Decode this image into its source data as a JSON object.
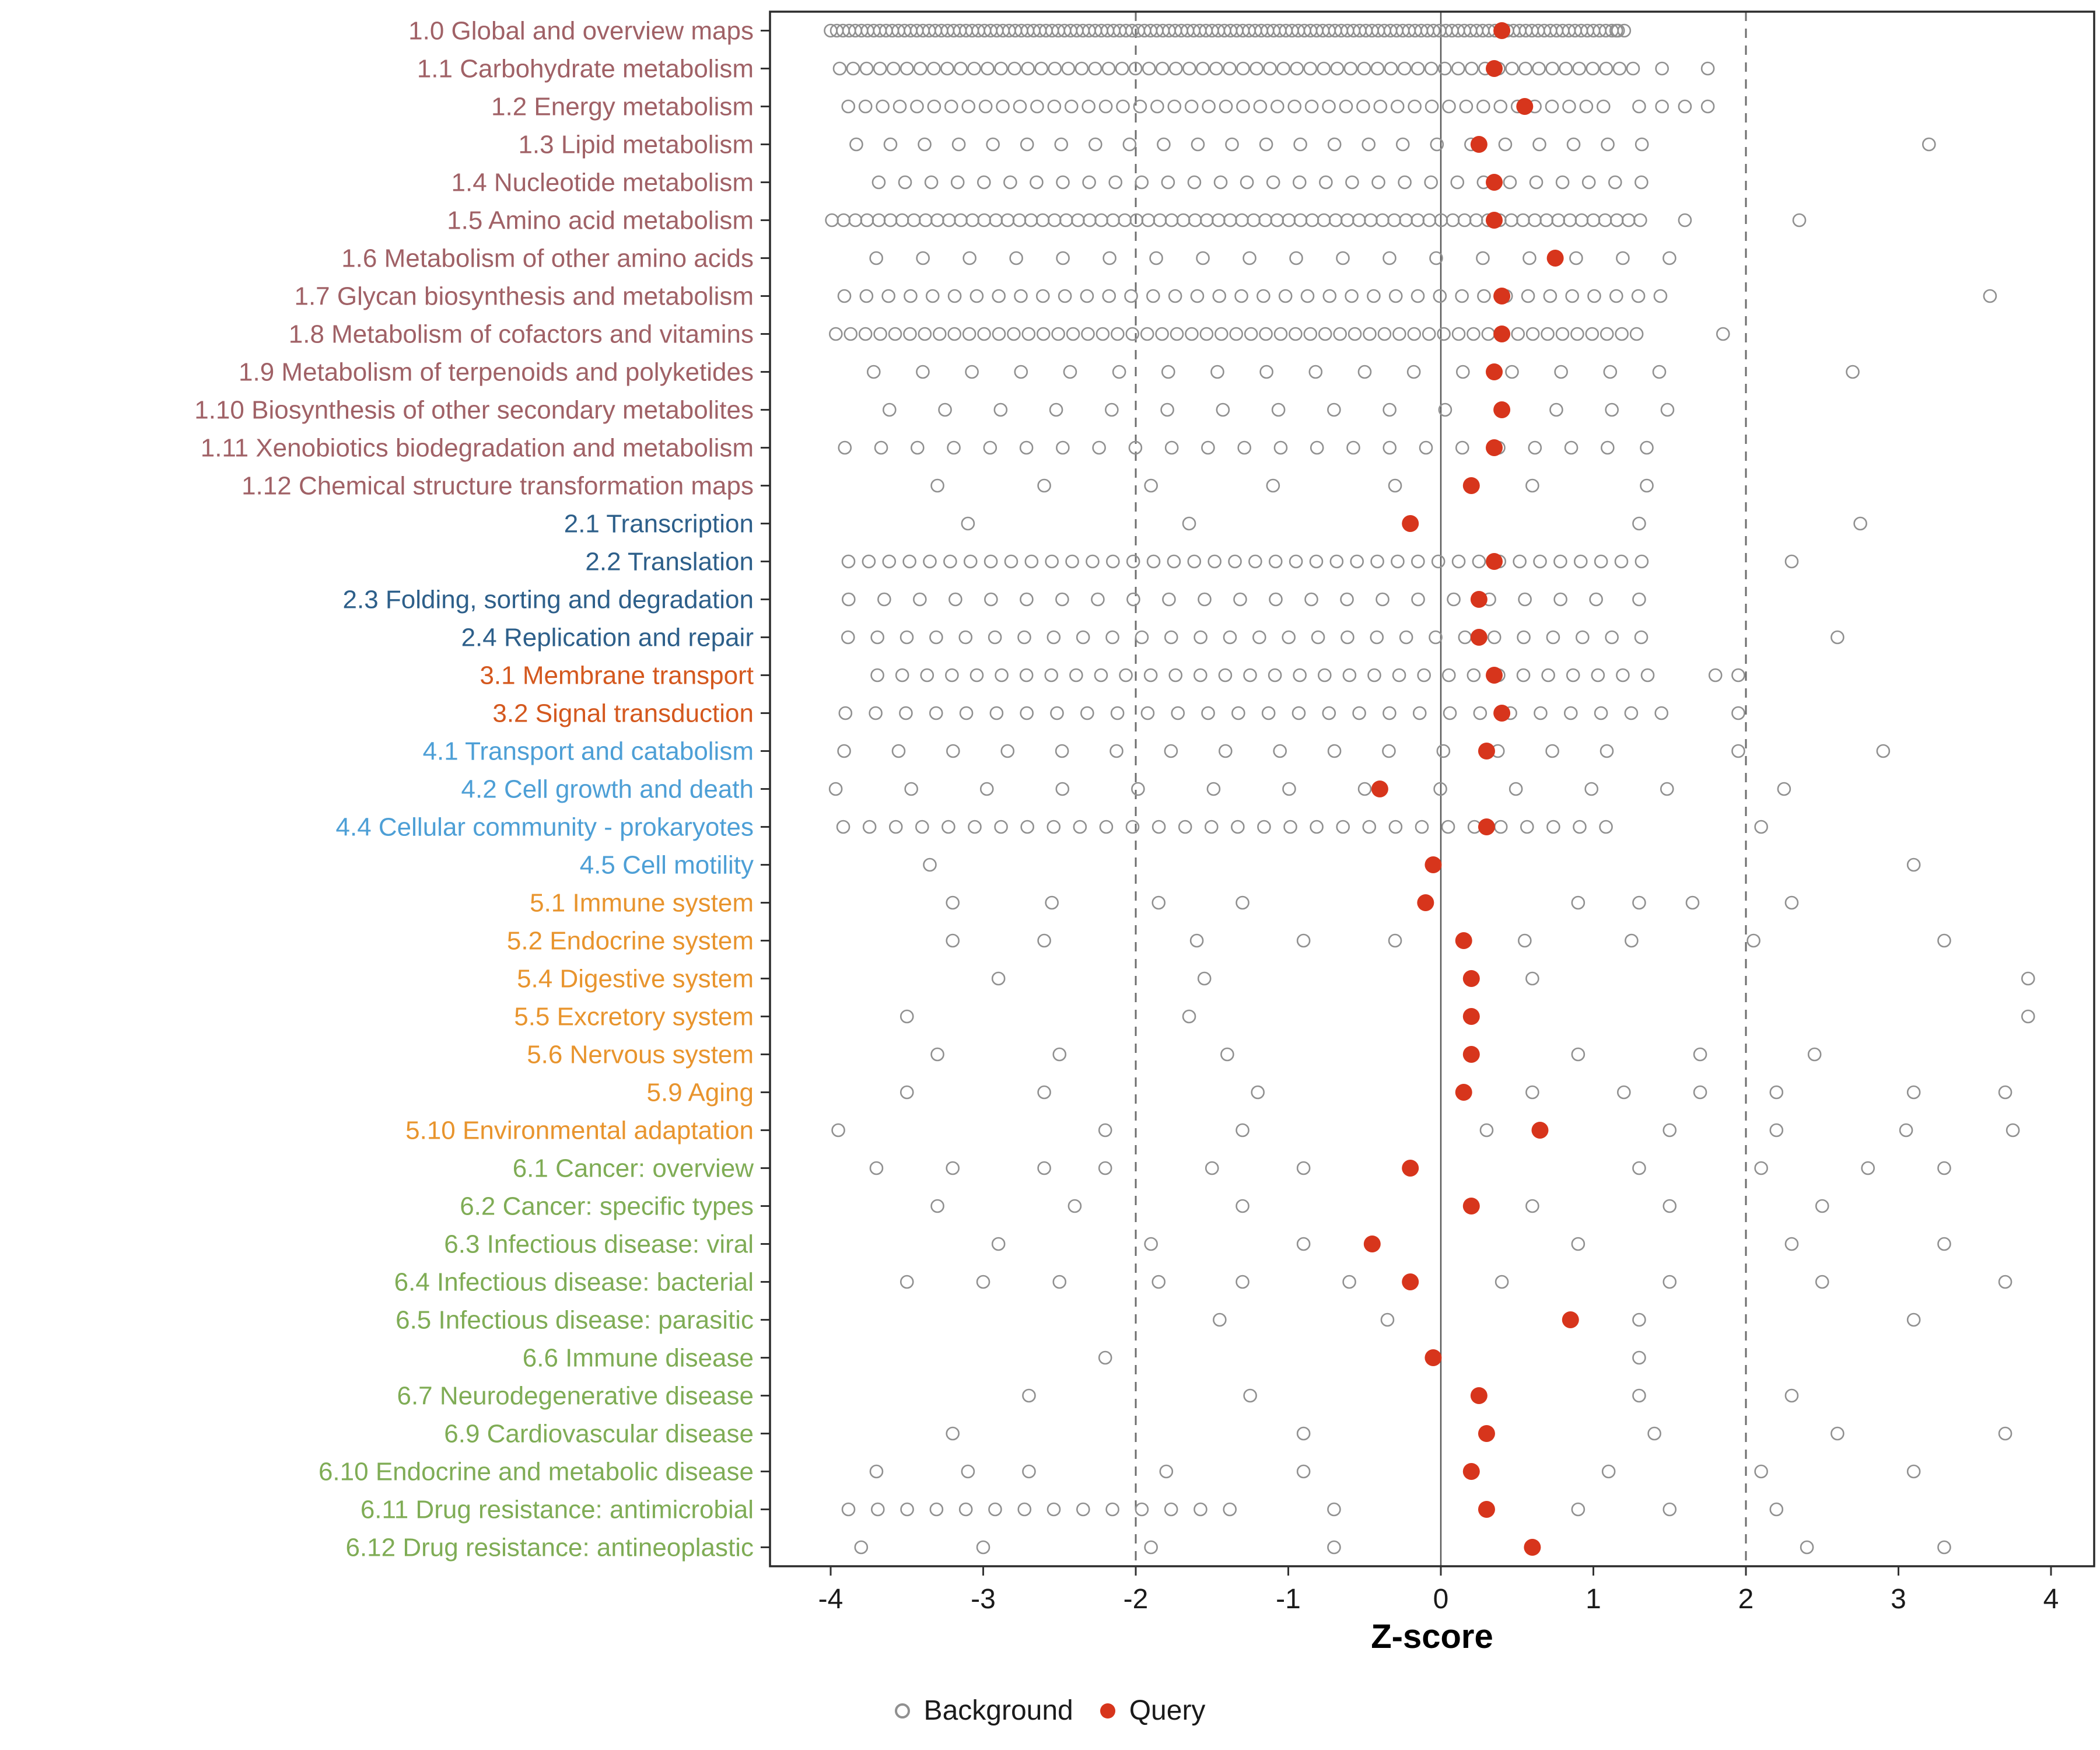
{
  "chart_data": {
    "type": "scatter",
    "title": "",
    "xlabel": "Z-score",
    "ylabel": "",
    "x_ticks": [
      -4,
      -3,
      -2,
      -1,
      0,
      1,
      2,
      3,
      4
    ],
    "x_range": [
      -4.4,
      4.3
    ],
    "ref_lines": {
      "solid": [
        0
      ],
      "dashed": [
        -2,
        2
      ]
    },
    "legend": {
      "background": "Background",
      "query": "Query"
    },
    "colors": {
      "query": "#D7351C",
      "background_stroke": "#909090",
      "axis_text": "#1a1a1a",
      "panel_border": "#2b2b2b",
      "ref_line": "#6e6e6e",
      "groups": {
        "g1": "#A06166",
        "g2": "#2D5F8A",
        "g3": "#D4581E",
        "g4": "#4D9FD6",
        "g5": "#E8942D",
        "g6": "#7FAC55"
      }
    },
    "categories": [
      {
        "label": "1.0 Global and overview maps",
        "group": "g1",
        "query": 0.4,
        "bg_bands": [
          [
            -4.0,
            1.2,
            130
          ]
        ],
        "bg_points": [
          1.15
        ]
      },
      {
        "label": "1.1 Carbohydrate metabolism",
        "group": "g1",
        "query": 0.35,
        "bg_bands": [
          [
            -3.95,
            1.25,
            60
          ]
        ],
        "bg_points": [
          1.45,
          1.75
        ]
      },
      {
        "label": "1.2 Energy metabolism",
        "group": "g1",
        "query": 0.55,
        "bg_bands": [
          [
            -3.9,
            1.05,
            45
          ]
        ],
        "bg_points": [
          1.3,
          1.45,
          1.6,
          1.75
        ]
      },
      {
        "label": "1.3 Lipid metabolism",
        "group": "g1",
        "query": 0.25,
        "bg_bands": [
          [
            -3.85,
            1.3,
            24
          ]
        ],
        "bg_points": [
          3.2
        ]
      },
      {
        "label": "1.4 Nucleotide metabolism",
        "group": "g1",
        "query": 0.35,
        "bg_bands": [
          [
            -3.7,
            1.3,
            30
          ]
        ],
        "bg_points": []
      },
      {
        "label": "1.5 Amino acid metabolism",
        "group": "g1",
        "query": 0.35,
        "bg_bands": [
          [
            -4.0,
            1.3,
            70
          ]
        ],
        "bg_points": [
          1.6,
          2.35
        ]
      },
      {
        "label": "1.6 Metabolism of other amino acids",
        "group": "g1",
        "query": 0.75,
        "bg_bands": [
          [
            -3.7,
            1.5,
            18
          ]
        ],
        "bg_points": []
      },
      {
        "label": "1.7 Glycan biosynthesis and metabolism",
        "group": "g1",
        "query": 0.4,
        "bg_bands": [
          [
            -3.9,
            1.45,
            38
          ]
        ],
        "bg_points": [
          3.6
        ]
      },
      {
        "label": "1.8 Metabolism of cofactors and vitamins",
        "group": "g1",
        "query": 0.4,
        "bg_bands": [
          [
            -3.95,
            1.3,
            55
          ]
        ],
        "bg_points": [
          1.85
        ]
      },
      {
        "label": "1.9 Metabolism of terpenoids and polyketides",
        "group": "g1",
        "query": 0.35,
        "bg_bands": [
          [
            -3.7,
            1.45,
            17
          ]
        ],
        "bg_points": [
          2.7
        ]
      },
      {
        "label": "1.10 Biosynthesis of other secondary metabolites",
        "group": "g1",
        "query": 0.4,
        "bg_bands": [
          [
            -3.6,
            1.5,
            15
          ]
        ],
        "bg_points": []
      },
      {
        "label": "1.11 Xenobiotics biodegradation and metabolism",
        "group": "g1",
        "query": 0.35,
        "bg_bands": [
          [
            -3.9,
            1.1,
            22
          ]
        ],
        "bg_points": [
          1.35
        ]
      },
      {
        "label": "1.12 Chemical structure transformation maps",
        "group": "g1",
        "query": 0.2,
        "bg_bands": [],
        "bg_points": [
          -3.3,
          -2.6,
          -1.9,
          -1.1,
          -0.3,
          0.6,
          1.35
        ]
      },
      {
        "label": "2.1 Transcription",
        "group": "g2",
        "query": -0.2,
        "bg_bands": [],
        "bg_points": [
          -3.1,
          -1.65,
          1.3,
          2.75
        ]
      },
      {
        "label": "2.2 Translation",
        "group": "g2",
        "query": 0.35,
        "bg_bands": [
          [
            -3.9,
            1.3,
            40
          ]
        ],
        "bg_points": [
          2.3
        ]
      },
      {
        "label": "2.3 Folding, sorting and degradation",
        "group": "g2",
        "query": 0.25,
        "bg_bands": [
          [
            -3.9,
            1.0,
            22
          ]
        ],
        "bg_points": [
          1.3
        ]
      },
      {
        "label": "2.4 Replication and repair",
        "group": "g2",
        "query": 0.25,
        "bg_bands": [
          [
            -3.9,
            1.3,
            28
          ]
        ],
        "bg_points": [
          2.6
        ]
      },
      {
        "label": "3.1 Membrane transport",
        "group": "g3",
        "query": 0.35,
        "bg_bands": [
          [
            -3.7,
            1.35,
            32
          ]
        ],
        "bg_points": [
          1.8,
          1.95
        ]
      },
      {
        "label": "3.2 Signal transduction",
        "group": "g3",
        "query": 0.4,
        "bg_bands": [
          [
            -3.9,
            1.45,
            28
          ]
        ],
        "bg_points": [
          1.95
        ]
      },
      {
        "label": "4.1 Transport and catabolism",
        "group": "g4",
        "query": 0.3,
        "bg_bands": [
          [
            -3.9,
            1.1,
            15
          ]
        ],
        "bg_points": [
          1.95,
          2.9
        ]
      },
      {
        "label": "4.2 Cell growth and death",
        "group": "g4",
        "query": -0.4,
        "bg_bands": [
          [
            -3.95,
            1.5,
            12
          ]
        ],
        "bg_points": [
          2.25
        ]
      },
      {
        "label": "4.4 Cellular community - prokaryotes",
        "group": "g4",
        "query": 0.3,
        "bg_bands": [
          [
            -3.9,
            1.1,
            30
          ]
        ],
        "bg_points": [
          2.1
        ]
      },
      {
        "label": "4.5 Cell motility",
        "group": "g4",
        "query": -0.05,
        "bg_bands": [],
        "bg_points": [
          -3.35,
          3.1
        ]
      },
      {
        "label": "5.1 Immune system",
        "group": "g5",
        "query": -0.1,
        "bg_bands": [],
        "bg_points": [
          -3.2,
          -2.55,
          -1.85,
          -1.3,
          0.9,
          1.3,
          1.65,
          2.3
        ]
      },
      {
        "label": "5.2 Endocrine system",
        "group": "g5",
        "query": 0.15,
        "bg_bands": [],
        "bg_points": [
          -3.2,
          -2.6,
          -1.6,
          -0.9,
          -0.3,
          0.55,
          1.25,
          2.05,
          3.3
        ]
      },
      {
        "label": "5.4 Digestive system",
        "group": "g5",
        "query": 0.2,
        "bg_bands": [],
        "bg_points": [
          -2.9,
          -1.55,
          0.6,
          3.85
        ]
      },
      {
        "label": "5.5 Excretory system",
        "group": "g5",
        "query": 0.2,
        "bg_bands": [],
        "bg_points": [
          -3.5,
          -1.65,
          3.85
        ]
      },
      {
        "label": "5.6 Nervous system",
        "group": "g5",
        "query": 0.2,
        "bg_bands": [],
        "bg_points": [
          -3.3,
          -2.5,
          -1.4,
          0.9,
          1.7,
          2.45
        ]
      },
      {
        "label": "5.9 Aging",
        "group": "g5",
        "query": 0.15,
        "bg_bands": [],
        "bg_points": [
          -3.5,
          -2.6,
          -1.2,
          0.6,
          1.2,
          1.7,
          2.2,
          3.1,
          3.7
        ]
      },
      {
        "label": "5.10 Environmental adaptation",
        "group": "g5",
        "query": 0.65,
        "bg_bands": [],
        "bg_points": [
          -3.95,
          -2.2,
          -1.3,
          0.3,
          1.5,
          2.2,
          3.05,
          3.75
        ]
      },
      {
        "label": "6.1 Cancer: overview",
        "group": "g6",
        "query": -0.2,
        "bg_bands": [],
        "bg_points": [
          -3.7,
          -3.2,
          -2.6,
          -2.2,
          -1.5,
          -0.9,
          1.3,
          2.1,
          2.8,
          3.3
        ]
      },
      {
        "label": "6.2 Cancer: specific types",
        "group": "g6",
        "query": 0.2,
        "bg_bands": [],
        "bg_points": [
          -3.3,
          -2.4,
          -1.3,
          0.6,
          1.5,
          2.5
        ]
      },
      {
        "label": "6.3 Infectious disease: viral",
        "group": "g6",
        "query": -0.45,
        "bg_bands": [],
        "bg_points": [
          -2.9,
          -1.9,
          -0.9,
          0.9,
          2.3,
          3.3
        ]
      },
      {
        "label": "6.4 Infectious disease: bacterial",
        "group": "g6",
        "query": -0.2,
        "bg_bands": [],
        "bg_points": [
          -3.5,
          -3.0,
          -2.5,
          -1.85,
          -1.3,
          -0.6,
          0.4,
          1.5,
          2.5,
          3.7
        ]
      },
      {
        "label": "6.5 Infectious disease: parasitic",
        "group": "g6",
        "query": 0.85,
        "bg_bands": [],
        "bg_points": [
          -1.45,
          -0.35,
          1.3,
          3.1
        ]
      },
      {
        "label": "6.6 Immune disease",
        "group": "g6",
        "query": -0.05,
        "bg_bands": [],
        "bg_points": [
          -2.2,
          1.3
        ]
      },
      {
        "label": "6.7 Neurodegenerative disease",
        "group": "g6",
        "query": 0.25,
        "bg_bands": [],
        "bg_points": [
          -2.7,
          -1.25,
          1.3,
          2.3
        ]
      },
      {
        "label": "6.9 Cardiovascular disease",
        "group": "g6",
        "query": 0.3,
        "bg_bands": [],
        "bg_points": [
          -3.2,
          -0.9,
          1.4,
          2.6,
          3.7
        ]
      },
      {
        "label": "6.10 Endocrine and metabolic disease",
        "group": "g6",
        "query": 0.2,
        "bg_bands": [],
        "bg_points": [
          -3.7,
          -3.1,
          -2.7,
          -1.8,
          -0.9,
          1.1,
          2.1,
          3.1
        ]
      },
      {
        "label": "6.11 Drug resistance: antimicrobial",
        "group": "g6",
        "query": 0.3,
        "bg_bands": [
          [
            -3.9,
            -1.4,
            14
          ]
        ],
        "bg_points": [
          -0.7,
          0.9,
          1.5,
          2.2
        ]
      },
      {
        "label": "6.12 Drug resistance: antineoplastic",
        "group": "g6",
        "query": 0.6,
        "bg_bands": [],
        "bg_points": [
          -3.8,
          -3.0,
          -1.9,
          -0.7,
          2.4,
          3.3
        ]
      }
    ]
  }
}
